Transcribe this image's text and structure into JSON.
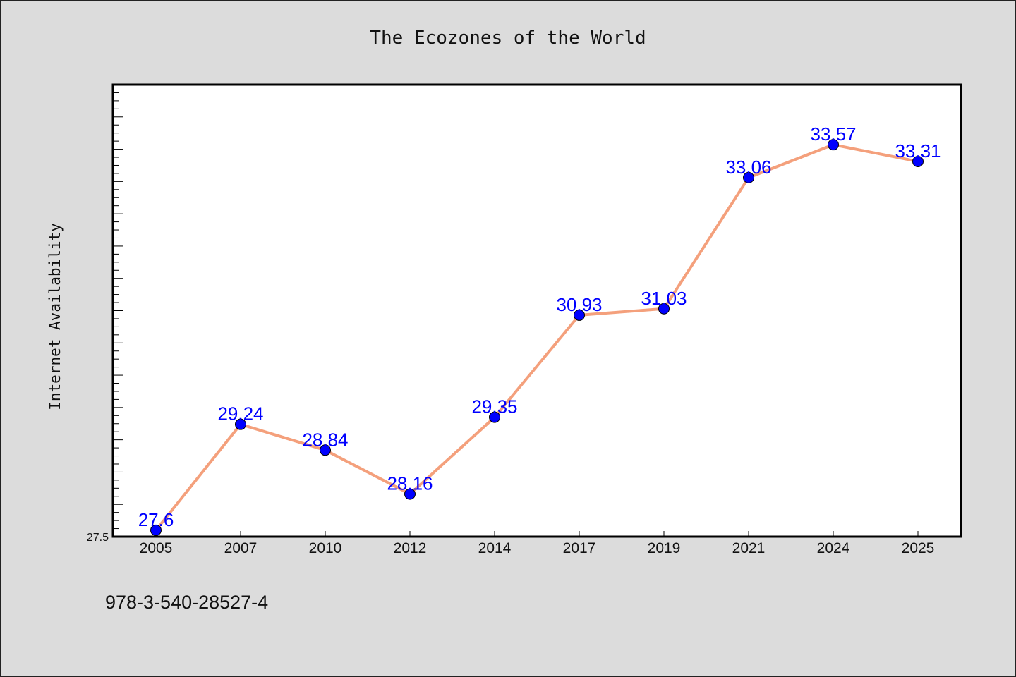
{
  "chart_data": {
    "type": "line",
    "title": "The Ecozones of the World",
    "xlabel": "",
    "ylabel": "Internet Availability",
    "categories": [
      "2005",
      "2007",
      "2010",
      "2012",
      "2014",
      "2017",
      "2019",
      "2021",
      "2024",
      "2025"
    ],
    "series": [
      {
        "values": [
          27.6,
          29.24,
          28.84,
          28.16,
          29.35,
          30.93,
          31.03,
          33.06,
          33.57,
          33.31
        ]
      }
    ],
    "data_labels": [
      "27.6",
      "29.24",
      "28.84",
      "28.16",
      "29.35",
      "30.93",
      "31.03",
      "33.06",
      "33.57",
      "33.31"
    ],
    "ylim": [
      27.5,
      34.5
    ],
    "ytick_labels": [
      "27.5"
    ],
    "grid": false,
    "line_color": "#f4a07c",
    "marker_color": "#0000ff",
    "label_color": "#0000ff"
  },
  "footer_text": "978-3-540-28527-4"
}
